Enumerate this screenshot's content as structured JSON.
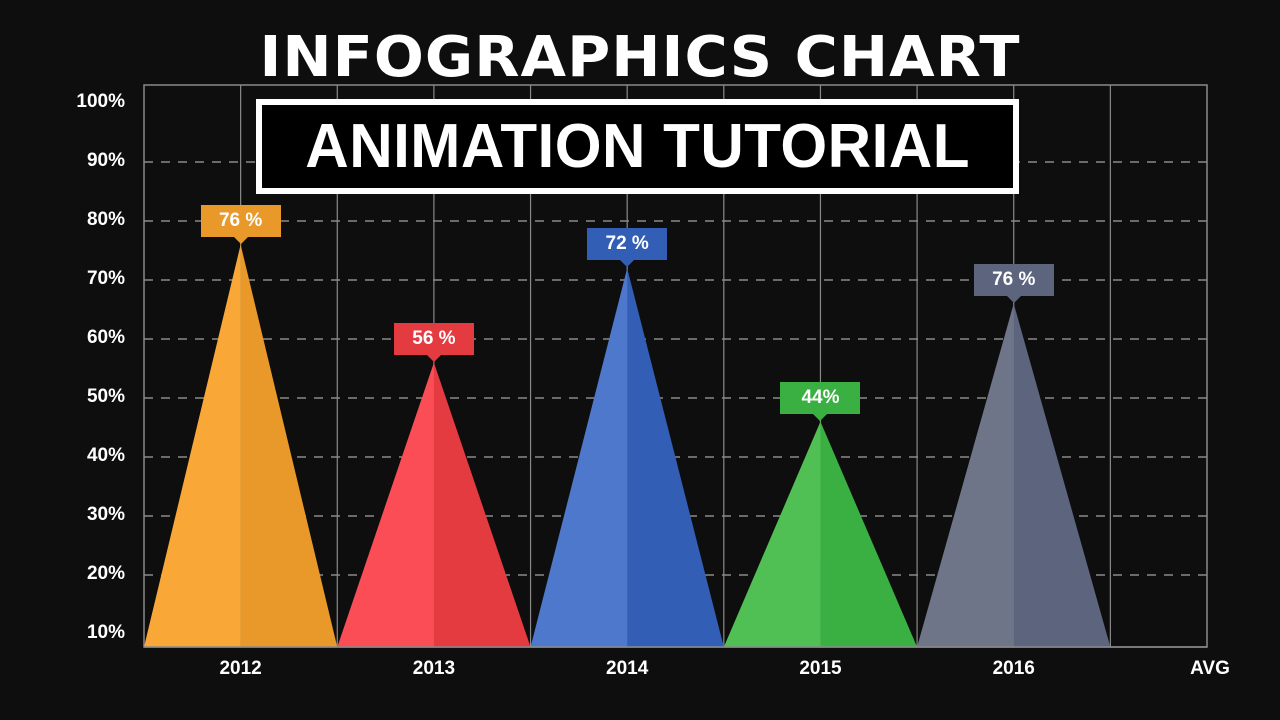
{
  "header": {
    "title": "INFOGRAPHICS CHART",
    "subtitle": "ANIMATION TUTORIAL"
  },
  "chart_data": {
    "type": "bar",
    "style": "triangle-peaks",
    "title": "INFOGRAPHICS CHART",
    "subtitle": "ANIMATION TUTORIAL",
    "xlabel": "",
    "ylabel": "",
    "categories": [
      "2012",
      "2013",
      "2014",
      "2015",
      "2016",
      "AVG"
    ],
    "values": [
      76,
      56,
      72,
      44,
      76,
      null
    ],
    "peak_heights": [
      76,
      56,
      72,
      46,
      66,
      null
    ],
    "data_labels": [
      "76 %",
      "56 %",
      "72 %",
      "44%",
      "76 %",
      ""
    ],
    "colors": [
      {
        "light": "#F9A838",
        "dark": "#E8992A"
      },
      {
        "light": "#FA4D55",
        "dark": "#E33B40"
      },
      {
        "light": "#4E78CB",
        "dark": "#335EB5"
      },
      {
        "light": "#50C055",
        "dark": "#3AAF42"
      },
      {
        "light": "#6F7588",
        "dark": "#5C647E"
      }
    ],
    "yticks": [
      "100%",
      "90%",
      "80%",
      "70%",
      "60%",
      "50%",
      "40%",
      "30%",
      "20%",
      "10%"
    ],
    "ylim": [
      7,
      100
    ],
    "grid": true,
    "legend": null
  }
}
